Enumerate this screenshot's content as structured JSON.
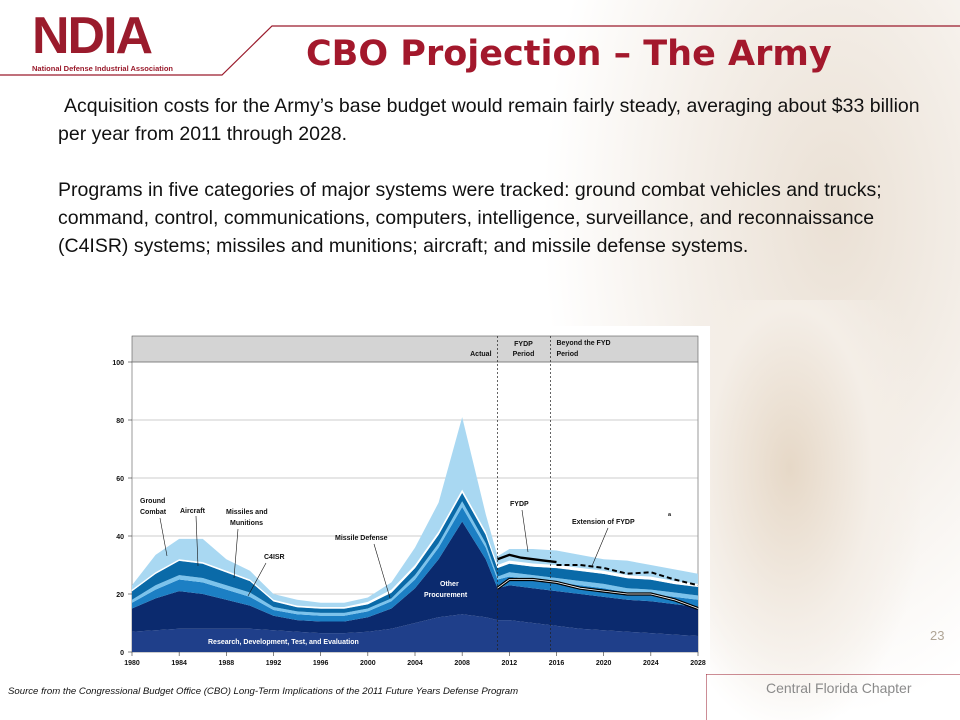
{
  "logo": {
    "wordmark": "NDIA",
    "tagline": "National Defense Industrial Association"
  },
  "title": "CBO Projection – The Army",
  "body": {
    "paragraph1": "Acquisition costs for the Army’s base budget would remain fairly steady, averaging about $33 billion per year from 2011 through 2028.",
    "paragraph2": "Programs in five categories of major systems were tracked: ground combat vehicles and trucks; command, control, communications, computers, intelligence, surveillance, and reconnaissance (C4ISR) systems; missiles and munitions; aircraft; and missile defense systems."
  },
  "chart_data": {
    "type": "area",
    "xlim": [
      1980,
      2028
    ],
    "ylim": [
      0,
      100
    ],
    "x_ticks": [
      "1980",
      "1984",
      "1988",
      "1992",
      "1996",
      "2000",
      "2004",
      "2008",
      "2012",
      "2016",
      "2020",
      "2024",
      "2028"
    ],
    "y_ticks": [
      "0",
      "20",
      "40",
      "60",
      "80",
      "100"
    ],
    "period_labels": [
      "Actual",
      "FYDP Period",
      "Beyond the FYDP Period"
    ],
    "x": [
      1980,
      1982,
      1984,
      1986,
      1988,
      1990,
      1992,
      1994,
      1996,
      1998,
      2000,
      2002,
      2004,
      2006,
      2008,
      2010,
      2011,
      2012,
      2014,
      2016,
      2018,
      2020,
      2022,
      2024,
      2026,
      2028
    ],
    "series": [
      {
        "name": "Research, Development, Test, and Evaluation",
        "color": "#1f3f8a",
        "values": [
          7,
          7.5,
          8,
          8,
          8,
          8,
          7.5,
          7,
          6.5,
          6.5,
          7,
          8,
          10,
          12,
          13,
          12,
          11,
          11,
          10,
          9,
          8,
          7.5,
          7,
          6.5,
          6,
          5.5
        ]
      },
      {
        "name": "Other Procurement",
        "color": "#0b2a6e",
        "values": [
          8,
          11,
          13,
          12,
          10,
          8,
          5,
          4,
          4,
          4,
          5,
          7,
          12,
          20,
          32,
          20,
          11,
          12,
          12,
          12,
          12,
          11.5,
          11,
          11,
          10.5,
          10
        ]
      },
      {
        "name": "C4ISR",
        "color": "#1c7fc4",
        "values": [
          2,
          3,
          4,
          4,
          3.5,
          3,
          2,
          2,
          2,
          2,
          2,
          2.5,
          3,
          4,
          5,
          4,
          3,
          3,
          3,
          3,
          3,
          3,
          2.5,
          2.5,
          2.5,
          2.5
        ]
      },
      {
        "name": "Missiles and Munitions",
        "color": "#7cc3ec",
        "values": [
          1,
          1.5,
          1.5,
          1.5,
          1.5,
          1.5,
          1,
          1,
          1,
          1,
          1,
          1,
          1.5,
          1.5,
          2,
          1.5,
          1,
          1.5,
          1.5,
          1.5,
          1.5,
          1.5,
          1.5,
          1.5,
          1.5,
          1.5
        ]
      },
      {
        "name": "Aircraft",
        "color": "#0a6aa8",
        "values": [
          3,
          4,
          5,
          5,
          4.5,
          4,
          2,
          1.5,
          1.5,
          1.5,
          1.5,
          2,
          2.5,
          3,
          3,
          3,
          3,
          3,
          3,
          3.5,
          3.5,
          3.5,
          3.5,
          3.5,
          3,
          3
        ]
      },
      {
        "name": "Missile Defense",
        "color": "#ffffff",
        "values": [
          0.5,
          0.5,
          0.5,
          0.5,
          0.5,
          0.5,
          0.5,
          0.5,
          0.5,
          0.5,
          0.8,
          1,
          1,
          1,
          1,
          1,
          1,
          1,
          1,
          1,
          1,
          1,
          1,
          1,
          1,
          1
        ]
      },
      {
        "name": "Ground Combat",
        "color": "#a9d8f2",
        "values": [
          1.5,
          6,
          7,
          8,
          4,
          3,
          2,
          2,
          1.5,
          1.5,
          1.5,
          2.5,
          6,
          10,
          25,
          6,
          3,
          4,
          5,
          5,
          4.5,
          4,
          5,
          4,
          4,
          3.5
        ]
      }
    ],
    "fydp_line": {
      "name": "FYDP",
      "x": [
        2011,
        2012,
        2013,
        2014,
        2015,
        2016
      ],
      "y": [
        32,
        33.5,
        32.5,
        32,
        31.5,
        31
      ]
    },
    "extension_line": {
      "name": "Extension of FYDP",
      "x": [
        2016,
        2018,
        2020,
        2022,
        2024,
        2026,
        2028
      ],
      "y": [
        30,
        30,
        29,
        27,
        27.5,
        25,
        23
      ]
    },
    "thick_line": {
      "x": [
        2011,
        2012,
        2014,
        2016,
        2018,
        2020,
        2022,
        2024,
        2026,
        2028
      ],
      "y": [
        22,
        25,
        25,
        24,
        22,
        21,
        20,
        20,
        18,
        15
      ]
    },
    "annotations": [
      "Ground Combat",
      "Aircraft",
      "Missiles and Munitions",
      "C4ISR",
      "Missile Defense",
      "FYDP",
      "Extension of FYDP",
      "Other Procurement",
      "Research, Development, Test, and Evaluation"
    ],
    "footnote_marker": "a"
  },
  "source": "Source from the Congressional Budget Office (CBO) Long-Term Implications of the 2011 Future Years Defense Program",
  "footer": {
    "chapter": "Central Florida Chapter",
    "page_number": "23"
  },
  "colors": {
    "title": "#a3182c",
    "brand": "#9a1b2c"
  }
}
